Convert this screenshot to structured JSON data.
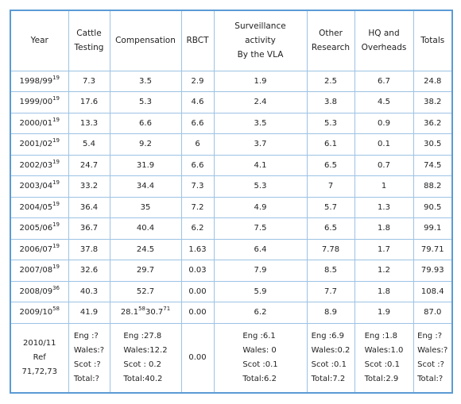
{
  "table": {
    "header": [
      [
        "Year"
      ],
      [
        "Cattle",
        "Testing"
      ],
      [
        "Compensation"
      ],
      [
        "RBCT"
      ],
      [
        "Surveillance",
        "activity",
        "By the VLA"
      ],
      [
        "Other",
        "Research"
      ],
      [
        "HQ and",
        "Overheads"
      ],
      [
        "Totals"
      ]
    ],
    "rows": [
      [
        {
          "runs": [
            {
              "text": "1998/99",
              "sup": "19"
            }
          ]
        },
        "7.3",
        "3.5",
        "2.9",
        "1.9",
        "2.5",
        "6.7",
        "24.8"
      ],
      [
        {
          "runs": [
            {
              "text": "1999/00",
              "sup": "19"
            }
          ]
        },
        "17.6",
        "5.3",
        "4.6",
        "2.4",
        "3.8",
        "4.5",
        "38.2"
      ],
      [
        {
          "runs": [
            {
              "text": "2000/01",
              "sup": "19"
            }
          ]
        },
        "13.3",
        "6.6",
        "6.6",
        "3.5",
        "5.3",
        "0.9",
        "36.2"
      ],
      [
        {
          "runs": [
            {
              "text": "2001/02",
              "sup": "19"
            }
          ]
        },
        "5.4",
        "9.2",
        "6",
        "3.7",
        "6.1",
        "0.1",
        "30.5"
      ],
      [
        {
          "runs": [
            {
              "text": "2002/03",
              "sup": "19"
            }
          ]
        },
        "24.7",
        "31.9",
        "6.6",
        "4.1",
        "6.5",
        "0.7",
        "74.5"
      ],
      [
        {
          "runs": [
            {
              "text": "2003/04",
              "sup": "19"
            }
          ]
        },
        "33.2",
        "34.4",
        "7.3",
        "5.3",
        "7",
        "1",
        "88.2"
      ],
      [
        {
          "runs": [
            {
              "text": "2004/05",
              "sup": "19"
            }
          ]
        },
        "36.4",
        "35",
        "7.2",
        "4.9",
        "5.7",
        "1.3",
        "90.5"
      ],
      [
        {
          "runs": [
            {
              "text": "2005/06",
              "sup": "19"
            }
          ]
        },
        "36.7",
        "40.4",
        "6.2",
        "7.5",
        "6.5",
        "1.8",
        "99.1"
      ],
      [
        {
          "runs": [
            {
              "text": "2006/07",
              "sup": "19"
            }
          ]
        },
        "37.8",
        "24.5",
        "1.63",
        "6.4",
        "7.78",
        "1.7",
        "79.71"
      ],
      [
        {
          "runs": [
            {
              "text": "2007/08",
              "sup": "19"
            }
          ]
        },
        "32.6",
        "29.7",
        "0.03",
        "7.9",
        "8.5",
        "1.2",
        "79.93"
      ],
      [
        {
          "runs": [
            {
              "text": "2008/09",
              "sup": "36"
            }
          ]
        },
        "40.3",
        "52.7",
        "0.00",
        "5.9",
        "7.7",
        "1.8",
        "108.4"
      ],
      [
        {
          "runs": [
            {
              "text": "2009/10",
              "sup": "58"
            }
          ]
        },
        "41.9",
        {
          "runs": [
            {
              "text": "28.1",
              "sup": "58"
            },
            {
              "text": "30.7",
              "sup": "71"
            }
          ]
        },
        "0.00",
        "6.2",
        "8.9",
        "1.9",
        "87.0"
      ],
      [
        [
          "2010/11",
          "Ref",
          "71,72,73"
        ],
        [
          "Eng :?",
          "Wales:?",
          "Scot :?",
          "Total:?"
        ],
        [
          "Eng :27.8",
          "Wales:12.2",
          "Scot : 0.2",
          "Total:40.2"
        ],
        "0.00",
        [
          "Eng :6.1",
          "Wales: 0",
          "Scot :0.1",
          "Total:6.2"
        ],
        [
          "Eng :6.9",
          "Wales:0.2",
          "Scot :0.1",
          "Total:7.2"
        ],
        [
          "Eng :1.8",
          "Wales:1.0",
          "Scot :0.1",
          "Total:2.9"
        ],
        [
          "Eng :?",
          "Wales:?",
          "Scot :?",
          "Total:?"
        ]
      ]
    ]
  }
}
